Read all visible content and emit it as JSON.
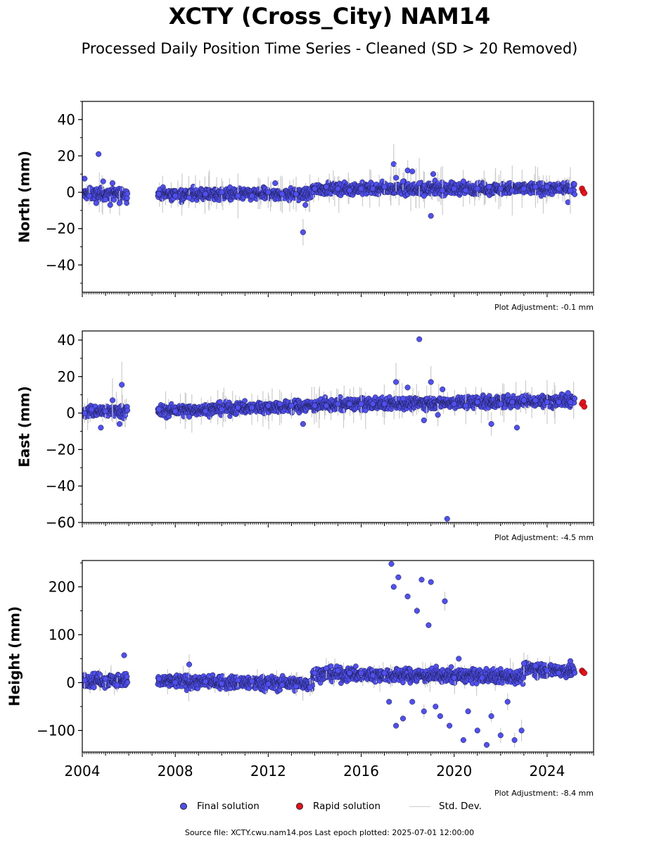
{
  "title": "XCTY (Cross_City) NAM14",
  "subtitle": "Processed Daily Position Time Series - Cleaned (SD > 20 Removed)",
  "legend": {
    "final": "Final solution",
    "rapid": "Rapid solution",
    "std": "Std. Dev."
  },
  "footer": "Source file: XCTY.cwu.nam14.pos  Last epoch plotted: 2025-07-01 12:00:00",
  "colors": {
    "final": "#4f4ff2",
    "rapid": "#e8101a",
    "std": "#cccccc",
    "edge": "#1a1a40"
  },
  "chart_data": [
    {
      "type": "scatter",
      "ylabel": "North (mm)",
      "ylim": [
        -55,
        50
      ],
      "yticks": [
        -40,
        -20,
        0,
        20,
        40
      ],
      "xlim": [
        2004,
        2026
      ],
      "xticks": [],
      "adjustment": "Plot Adjustment: -0.1 mm",
      "series": [
        {
          "name": "Final solution",
          "points": [
            [
              2004.1,
              7.5
            ],
            [
              2004.3,
              -2
            ],
            [
              2004.6,
              -6
            ],
            [
              2004.7,
              21
            ],
            [
              2004.9,
              6
            ],
            [
              2005.0,
              -4
            ],
            [
              2005.2,
              -7
            ],
            [
              2005.3,
              5
            ],
            [
              2005.6,
              -6
            ],
            [
              2007.3,
              -1
            ],
            [
              2008.0,
              -2
            ],
            [
              2008.6,
              -3
            ],
            [
              2009.3,
              -1
            ],
            [
              2010.0,
              0
            ],
            [
              2010.7,
              -2
            ],
            [
              2011.3,
              -2
            ],
            [
              2012.0,
              0
            ],
            [
              2012.3,
              5
            ],
            [
              2012.6,
              -1
            ],
            [
              2013.2,
              -1
            ],
            [
              2013.5,
              -22
            ],
            [
              2013.6,
              -7
            ],
            [
              2014.0,
              2
            ],
            [
              2014.5,
              3
            ],
            [
              2015.0,
              2
            ],
            [
              2015.5,
              1
            ],
            [
              2016.0,
              2
            ],
            [
              2016.5,
              2
            ],
            [
              2017.0,
              3
            ],
            [
              2017.4,
              15.5
            ],
            [
              2017.5,
              8
            ],
            [
              2017.8,
              6
            ],
            [
              2018.0,
              12
            ],
            [
              2018.2,
              11.5
            ],
            [
              2018.5,
              5
            ],
            [
              2018.7,
              -2
            ],
            [
              2019.0,
              -13
            ],
            [
              2019.1,
              10
            ],
            [
              2019.5,
              1
            ],
            [
              2020.0,
              2
            ],
            [
              2020.4,
              6
            ],
            [
              2020.5,
              1
            ],
            [
              2021.0,
              2
            ],
            [
              2021.5,
              3
            ],
            [
              2022.0,
              2
            ],
            [
              2022.5,
              1
            ],
            [
              2023.0,
              2
            ],
            [
              2023.5,
              3
            ],
            [
              2024.0,
              3
            ],
            [
              2024.5,
              2
            ],
            [
              2024.9,
              -5.5
            ],
            [
              2025.0,
              1
            ]
          ]
        },
        {
          "name": "Rapid solution",
          "points": [
            [
              2025.5,
              2
            ],
            [
              2025.55,
              0.5
            ],
            [
              2025.6,
              -0.5
            ]
          ]
        }
      ]
    },
    {
      "type": "scatter",
      "ylabel": "East (mm)",
      "ylim": [
        -60,
        45
      ],
      "yticks": [
        -60,
        -40,
        -20,
        0,
        20,
        40
      ],
      "xlim": [
        2004,
        2026
      ],
      "xticks": [],
      "adjustment": "Plot Adjustment: -4.5 mm",
      "series": [
        {
          "name": "Final solution",
          "points": [
            [
              2004.1,
              0
            ],
            [
              2004.4,
              2
            ],
            [
              2004.8,
              -8
            ],
            [
              2005.0,
              1
            ],
            [
              2005.3,
              7
            ],
            [
              2005.7,
              15.5
            ],
            [
              2005.6,
              -6
            ],
            [
              2007.3,
              2
            ],
            [
              2008.0,
              1
            ],
            [
              2008.6,
              -2
            ],
            [
              2009.3,
              1
            ],
            [
              2010.0,
              2
            ],
            [
              2010.7,
              3
            ],
            [
              2011.3,
              3
            ],
            [
              2012.0,
              4
            ],
            [
              2012.5,
              5
            ],
            [
              2013.0,
              4
            ],
            [
              2013.5,
              -6
            ],
            [
              2014.0,
              4
            ],
            [
              2014.5,
              4
            ],
            [
              2015.0,
              5
            ],
            [
              2015.5,
              5
            ],
            [
              2016.0,
              5
            ],
            [
              2016.5,
              5
            ],
            [
              2017.0,
              5
            ],
            [
              2017.5,
              17
            ],
            [
              2017.8,
              8
            ],
            [
              2018.0,
              14
            ],
            [
              2018.5,
              40.5
            ],
            [
              2018.7,
              -4
            ],
            [
              2019.0,
              17
            ],
            [
              2019.3,
              -1
            ],
            [
              2019.5,
              13
            ],
            [
              2019.7,
              -58
            ],
            [
              2020.0,
              5
            ],
            [
              2020.5,
              4
            ],
            [
              2021.0,
              6
            ],
            [
              2021.6,
              -6
            ],
            [
              2022.0,
              5
            ],
            [
              2022.5,
              6
            ],
            [
              2022.7,
              -8
            ],
            [
              2023.0,
              7
            ],
            [
              2023.5,
              7
            ],
            [
              2024.0,
              6
            ],
            [
              2024.5,
              6
            ],
            [
              2024.9,
              11
            ],
            [
              2025.0,
              6
            ]
          ]
        },
        {
          "name": "Rapid solution",
          "points": [
            [
              2025.5,
              5
            ],
            [
              2025.55,
              6
            ],
            [
              2025.6,
              3.5
            ]
          ]
        }
      ]
    },
    {
      "type": "scatter",
      "ylabel": "Height (mm)",
      "ylim": [
        -145,
        255
      ],
      "yticks": [
        -100,
        0,
        100,
        200
      ],
      "xlim": [
        2004,
        2026
      ],
      "xticks": [
        "2004",
        "2008",
        "2012",
        "2016",
        "2020",
        "2024"
      ],
      "adjustment": "Plot Adjustment: -8.4 mm",
      "series": [
        {
          "name": "Final solution",
          "points": [
            [
              2004.1,
              5
            ],
            [
              2004.5,
              -10
            ],
            [
              2005.0,
              8
            ],
            [
              2005.5,
              -5
            ],
            [
              2005.8,
              57
            ],
            [
              2007.3,
              8
            ],
            [
              2008.0,
              0
            ],
            [
              2008.6,
              38
            ],
            [
              2009.3,
              2
            ],
            [
              2010.0,
              -2
            ],
            [
              2010.7,
              5
            ],
            [
              2011.3,
              3
            ],
            [
              2012.0,
              -3
            ],
            [
              2012.6,
              -5
            ],
            [
              2013.2,
              -8
            ],
            [
              2013.8,
              -10
            ],
            [
              2014.0,
              20
            ],
            [
              2014.5,
              30
            ],
            [
              2015.0,
              25
            ],
            [
              2015.5,
              20
            ],
            [
              2016.0,
              20
            ],
            [
              2016.5,
              15
            ],
            [
              2017.0,
              20
            ],
            [
              2017.2,
              -40
            ],
            [
              2017.3,
              248
            ],
            [
              2017.4,
              200
            ],
            [
              2017.5,
              -90
            ],
            [
              2017.6,
              220
            ],
            [
              2017.8,
              -75
            ],
            [
              2018.0,
              180
            ],
            [
              2018.2,
              -40
            ],
            [
              2018.4,
              150
            ],
            [
              2018.6,
              215
            ],
            [
              2018.7,
              -60
            ],
            [
              2018.9,
              120
            ],
            [
              2019.0,
              210
            ],
            [
              2019.2,
              -50
            ],
            [
              2019.4,
              -70
            ],
            [
              2019.6,
              170
            ],
            [
              2019.8,
              -90
            ],
            [
              2020.0,
              10
            ],
            [
              2020.2,
              50
            ],
            [
              2020.4,
              -120
            ],
            [
              2020.6,
              -60
            ],
            [
              2021.0,
              -100
            ],
            [
              2021.2,
              10
            ],
            [
              2021.4,
              -130
            ],
            [
              2021.6,
              -70
            ],
            [
              2022.0,
              -110
            ],
            [
              2022.3,
              -40
            ],
            [
              2022.6,
              -120
            ],
            [
              2022.9,
              -100
            ],
            [
              2023.0,
              40
            ],
            [
              2023.5,
              35
            ],
            [
              2024.0,
              25
            ],
            [
              2024.5,
              20
            ],
            [
              2025.0,
              45
            ]
          ]
        },
        {
          "name": "Rapid solution",
          "points": [
            [
              2025.5,
              25
            ],
            [
              2025.55,
              22
            ],
            [
              2025.6,
              20
            ]
          ]
        }
      ]
    }
  ]
}
